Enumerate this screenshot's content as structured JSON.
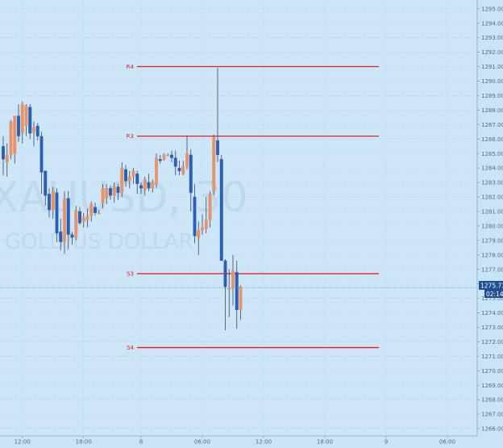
{
  "chart_data": {
    "type": "candlestick",
    "symbol_watermark": "XAUUSD, 30",
    "subtitle_watermark": "GOLD/US DOLLAR",
    "colors": {
      "background": "#cce6f8",
      "grid": "#a9c8de",
      "bull": "#e7936a",
      "bear": "#2c5fb3",
      "level_line": "#e8201c",
      "price_line": "#7d9bb4",
      "price_label_bg": "#1f4f93",
      "time_label_bg": "#1f4f93",
      "axis_text": "#5a6b7a"
    },
    "y_axis": {
      "min": 1265.5,
      "max": 1295.6,
      "ticks": [
        "1266.00",
        "1267.00",
        "1268.00",
        "1269.00",
        "1270.00",
        "1271.00",
        "1272.00",
        "1273.00",
        "1274.00",
        "1275.00",
        "1276.00",
        "1277.00",
        "1278.00",
        "1279.00",
        "1280.00",
        "1281.00",
        "1282.00",
        "1283.00",
        "1284.00",
        "1285.00",
        "1286.00",
        "1287.00",
        "1288.00",
        "1289.00",
        "1290.00",
        "1291.00",
        "1292.00",
        "1293.00",
        "1294.00",
        "1295.00"
      ]
    },
    "x_axis": {
      "bar_min": -5,
      "bar_max": 95,
      "ticks": [
        {
          "bar": 5,
          "label": "12:00"
        },
        {
          "bar": 21,
          "label": "18:00"
        },
        {
          "bar": 36,
          "label": "8"
        },
        {
          "bar": 52,
          "label": "06:00"
        },
        {
          "bar": 68,
          "label": "12:00"
        },
        {
          "bar": 84,
          "label": "18:00"
        },
        {
          "bar": 100,
          "label": "9"
        },
        {
          "bar": 116,
          "label": "06:00"
        }
      ]
    },
    "current_price": "1275.73",
    "current_price_value": 1275.73,
    "countdown": "02:14",
    "levels": [
      {
        "label": "R4",
        "price": 1291.0,
        "bar_start": 31,
        "bar_end": 88
      },
      {
        "label": "R3",
        "price": 1286.2,
        "bar_start": 31,
        "bar_end": 88
      },
      {
        "label": "S3",
        "price": 1276.7,
        "bar_start": 31,
        "bar_end": 88
      },
      {
        "label": "S4",
        "price": 1271.6,
        "bar_start": 31,
        "bar_end": 88
      }
    ],
    "candles": [
      {
        "o": 1285.5,
        "h": 1286.2,
        "l": 1283.5,
        "c": 1284.6
      },
      {
        "o": 1284.4,
        "h": 1285.7,
        "l": 1283.4,
        "c": 1284.9
      },
      {
        "o": 1284.9,
        "h": 1287.3,
        "l": 1284.6,
        "c": 1287.2
      },
      {
        "o": 1285.0,
        "h": 1287.6,
        "l": 1284.3,
        "c": 1287.6
      },
      {
        "o": 1287.6,
        "h": 1288.4,
        "l": 1285.8,
        "c": 1286.2
      },
      {
        "o": 1286.4,
        "h": 1288.6,
        "l": 1285.7,
        "c": 1288.4
      },
      {
        "o": 1286.9,
        "h": 1288.4,
        "l": 1286.2,
        "c": 1288.3
      },
      {
        "o": 1288.2,
        "h": 1288.4,
        "l": 1286.0,
        "c": 1286.4
      },
      {
        "o": 1286.5,
        "h": 1287.2,
        "l": 1285.5,
        "c": 1286.8
      },
      {
        "o": 1286.9,
        "h": 1287.1,
        "l": 1285.9,
        "c": 1286.2
      },
      {
        "o": 1286.2,
        "h": 1286.5,
        "l": 1282.2,
        "c": 1283.7
      },
      {
        "o": 1283.8,
        "h": 1283.8,
        "l": 1281.4,
        "c": 1282.1
      },
      {
        "o": 1282.2,
        "h": 1282.6,
        "l": 1280.6,
        "c": 1281.1
      },
      {
        "o": 1281.1,
        "h": 1282.7,
        "l": 1280.5,
        "c": 1282.4
      },
      {
        "o": 1282.3,
        "h": 1282.6,
        "l": 1278.9,
        "c": 1279.5
      },
      {
        "o": 1279.6,
        "h": 1280.5,
        "l": 1278.3,
        "c": 1278.9
      },
      {
        "o": 1278.9,
        "h": 1282.4,
        "l": 1278.1,
        "c": 1281.9
      },
      {
        "o": 1281.9,
        "h": 1282.4,
        "l": 1278.4,
        "c": 1279.4
      },
      {
        "o": 1279.4,
        "h": 1279.6,
        "l": 1278.7,
        "c": 1279.2
      },
      {
        "o": 1279.2,
        "h": 1281.4,
        "l": 1279.0,
        "c": 1281.1
      },
      {
        "o": 1281.0,
        "h": 1281.3,
        "l": 1280.1,
        "c": 1280.2
      },
      {
        "o": 1280.3,
        "h": 1280.9,
        "l": 1279.9,
        "c": 1280.6
      },
      {
        "o": 1280.4,
        "h": 1281.2,
        "l": 1279.9,
        "c": 1280.7
      },
      {
        "o": 1280.7,
        "h": 1281.7,
        "l": 1280.3,
        "c": 1281.5
      },
      {
        "o": 1281.3,
        "h": 1281.6,
        "l": 1280.7,
        "c": 1280.9
      },
      {
        "o": 1280.9,
        "h": 1281.1,
        "l": 1280.8,
        "c": 1280.9
      },
      {
        "o": 1281.6,
        "h": 1282.9,
        "l": 1281.2,
        "c": 1282.6
      },
      {
        "o": 1281.9,
        "h": 1282.9,
        "l": 1281.5,
        "c": 1282.6
      },
      {
        "o": 1282.6,
        "h": 1282.8,
        "l": 1281.8,
        "c": 1282.1
      },
      {
        "o": 1282.1,
        "h": 1283.0,
        "l": 1281.6,
        "c": 1282.7
      },
      {
        "o": 1282.7,
        "h": 1282.9,
        "l": 1281.8,
        "c": 1282.3
      },
      {
        "o": 1282.3,
        "h": 1284.4,
        "l": 1282.0,
        "c": 1284.0
      },
      {
        "o": 1283.9,
        "h": 1284.2,
        "l": 1282.7,
        "c": 1283.1
      },
      {
        "o": 1283.1,
        "h": 1283.8,
        "l": 1282.6,
        "c": 1283.4
      },
      {
        "o": 1283.4,
        "h": 1284.0,
        "l": 1282.9,
        "c": 1283.8
      },
      {
        "o": 1283.6,
        "h": 1283.8,
        "l": 1282.2,
        "c": 1282.9
      },
      {
        "o": 1282.8,
        "h": 1283.0,
        "l": 1282.2,
        "c": 1282.6
      },
      {
        "o": 1282.5,
        "h": 1283.4,
        "l": 1282.1,
        "c": 1283.2
      },
      {
        "o": 1283.0,
        "h": 1283.6,
        "l": 1282.4,
        "c": 1282.6
      },
      {
        "o": 1282.6,
        "h": 1283.2,
        "l": 1282.3,
        "c": 1283.0
      },
      {
        "o": 1282.9,
        "h": 1285.0,
        "l": 1282.6,
        "c": 1284.7
      },
      {
        "o": 1284.6,
        "h": 1284.9,
        "l": 1284.3,
        "c": 1284.5
      },
      {
        "o": 1284.6,
        "h": 1285.0,
        "l": 1284.5,
        "c": 1284.9
      },
      {
        "o": 1284.9,
        "h": 1285.0,
        "l": 1284.8,
        "c": 1284.9
      },
      {
        "o": 1284.9,
        "h": 1285.2,
        "l": 1284.4,
        "c": 1284.7
      },
      {
        "o": 1284.7,
        "h": 1285.2,
        "l": 1283.5,
        "c": 1284.1
      },
      {
        "o": 1284.0,
        "h": 1284.5,
        "l": 1283.5,
        "c": 1283.8
      },
      {
        "o": 1283.6,
        "h": 1284.5,
        "l": 1283.5,
        "c": 1284.1
      },
      {
        "o": 1284.1,
        "h": 1286.2,
        "l": 1283.9,
        "c": 1285.0
      },
      {
        "o": 1284.9,
        "h": 1285.3,
        "l": 1281.0,
        "c": 1282.3
      },
      {
        "o": 1282.0,
        "h": 1282.9,
        "l": 1278.8,
        "c": 1279.3
      },
      {
        "o": 1279.2,
        "h": 1280.3,
        "l": 1278.0,
        "c": 1279.7
      },
      {
        "o": 1279.7,
        "h": 1280.8,
        "l": 1279.4,
        "c": 1279.9
      },
      {
        "o": 1279.8,
        "h": 1282.0,
        "l": 1279.5,
        "c": 1280.4
      },
      {
        "o": 1280.4,
        "h": 1282.4,
        "l": 1279.9,
        "c": 1282.2
      },
      {
        "o": 1282.4,
        "h": 1286.3,
        "l": 1282.1,
        "c": 1286.1
      },
      {
        "o": 1285.9,
        "h": 1290.9,
        "l": 1284.4,
        "c": 1284.9
      },
      {
        "o": 1284.6,
        "h": 1284.9,
        "l": 1277.6,
        "c": 1277.6
      },
      {
        "o": 1277.6,
        "h": 1277.7,
        "l": 1272.8,
        "c": 1275.8
      },
      {
        "o": 1275.6,
        "h": 1277.0,
        "l": 1273.7,
        "c": 1275.7
      },
      {
        "o": 1275.7,
        "h": 1278.0,
        "l": 1274.5,
        "c": 1276.9
      },
      {
        "o": 1276.8,
        "h": 1277.6,
        "l": 1272.9,
        "c": 1274.2
      },
      {
        "o": 1274.2,
        "h": 1275.9,
        "l": 1273.5,
        "c": 1275.8
      }
    ]
  },
  "ui": {
    "price_axis_highlight": "1275.73",
    "countdown_label": "02:14"
  }
}
